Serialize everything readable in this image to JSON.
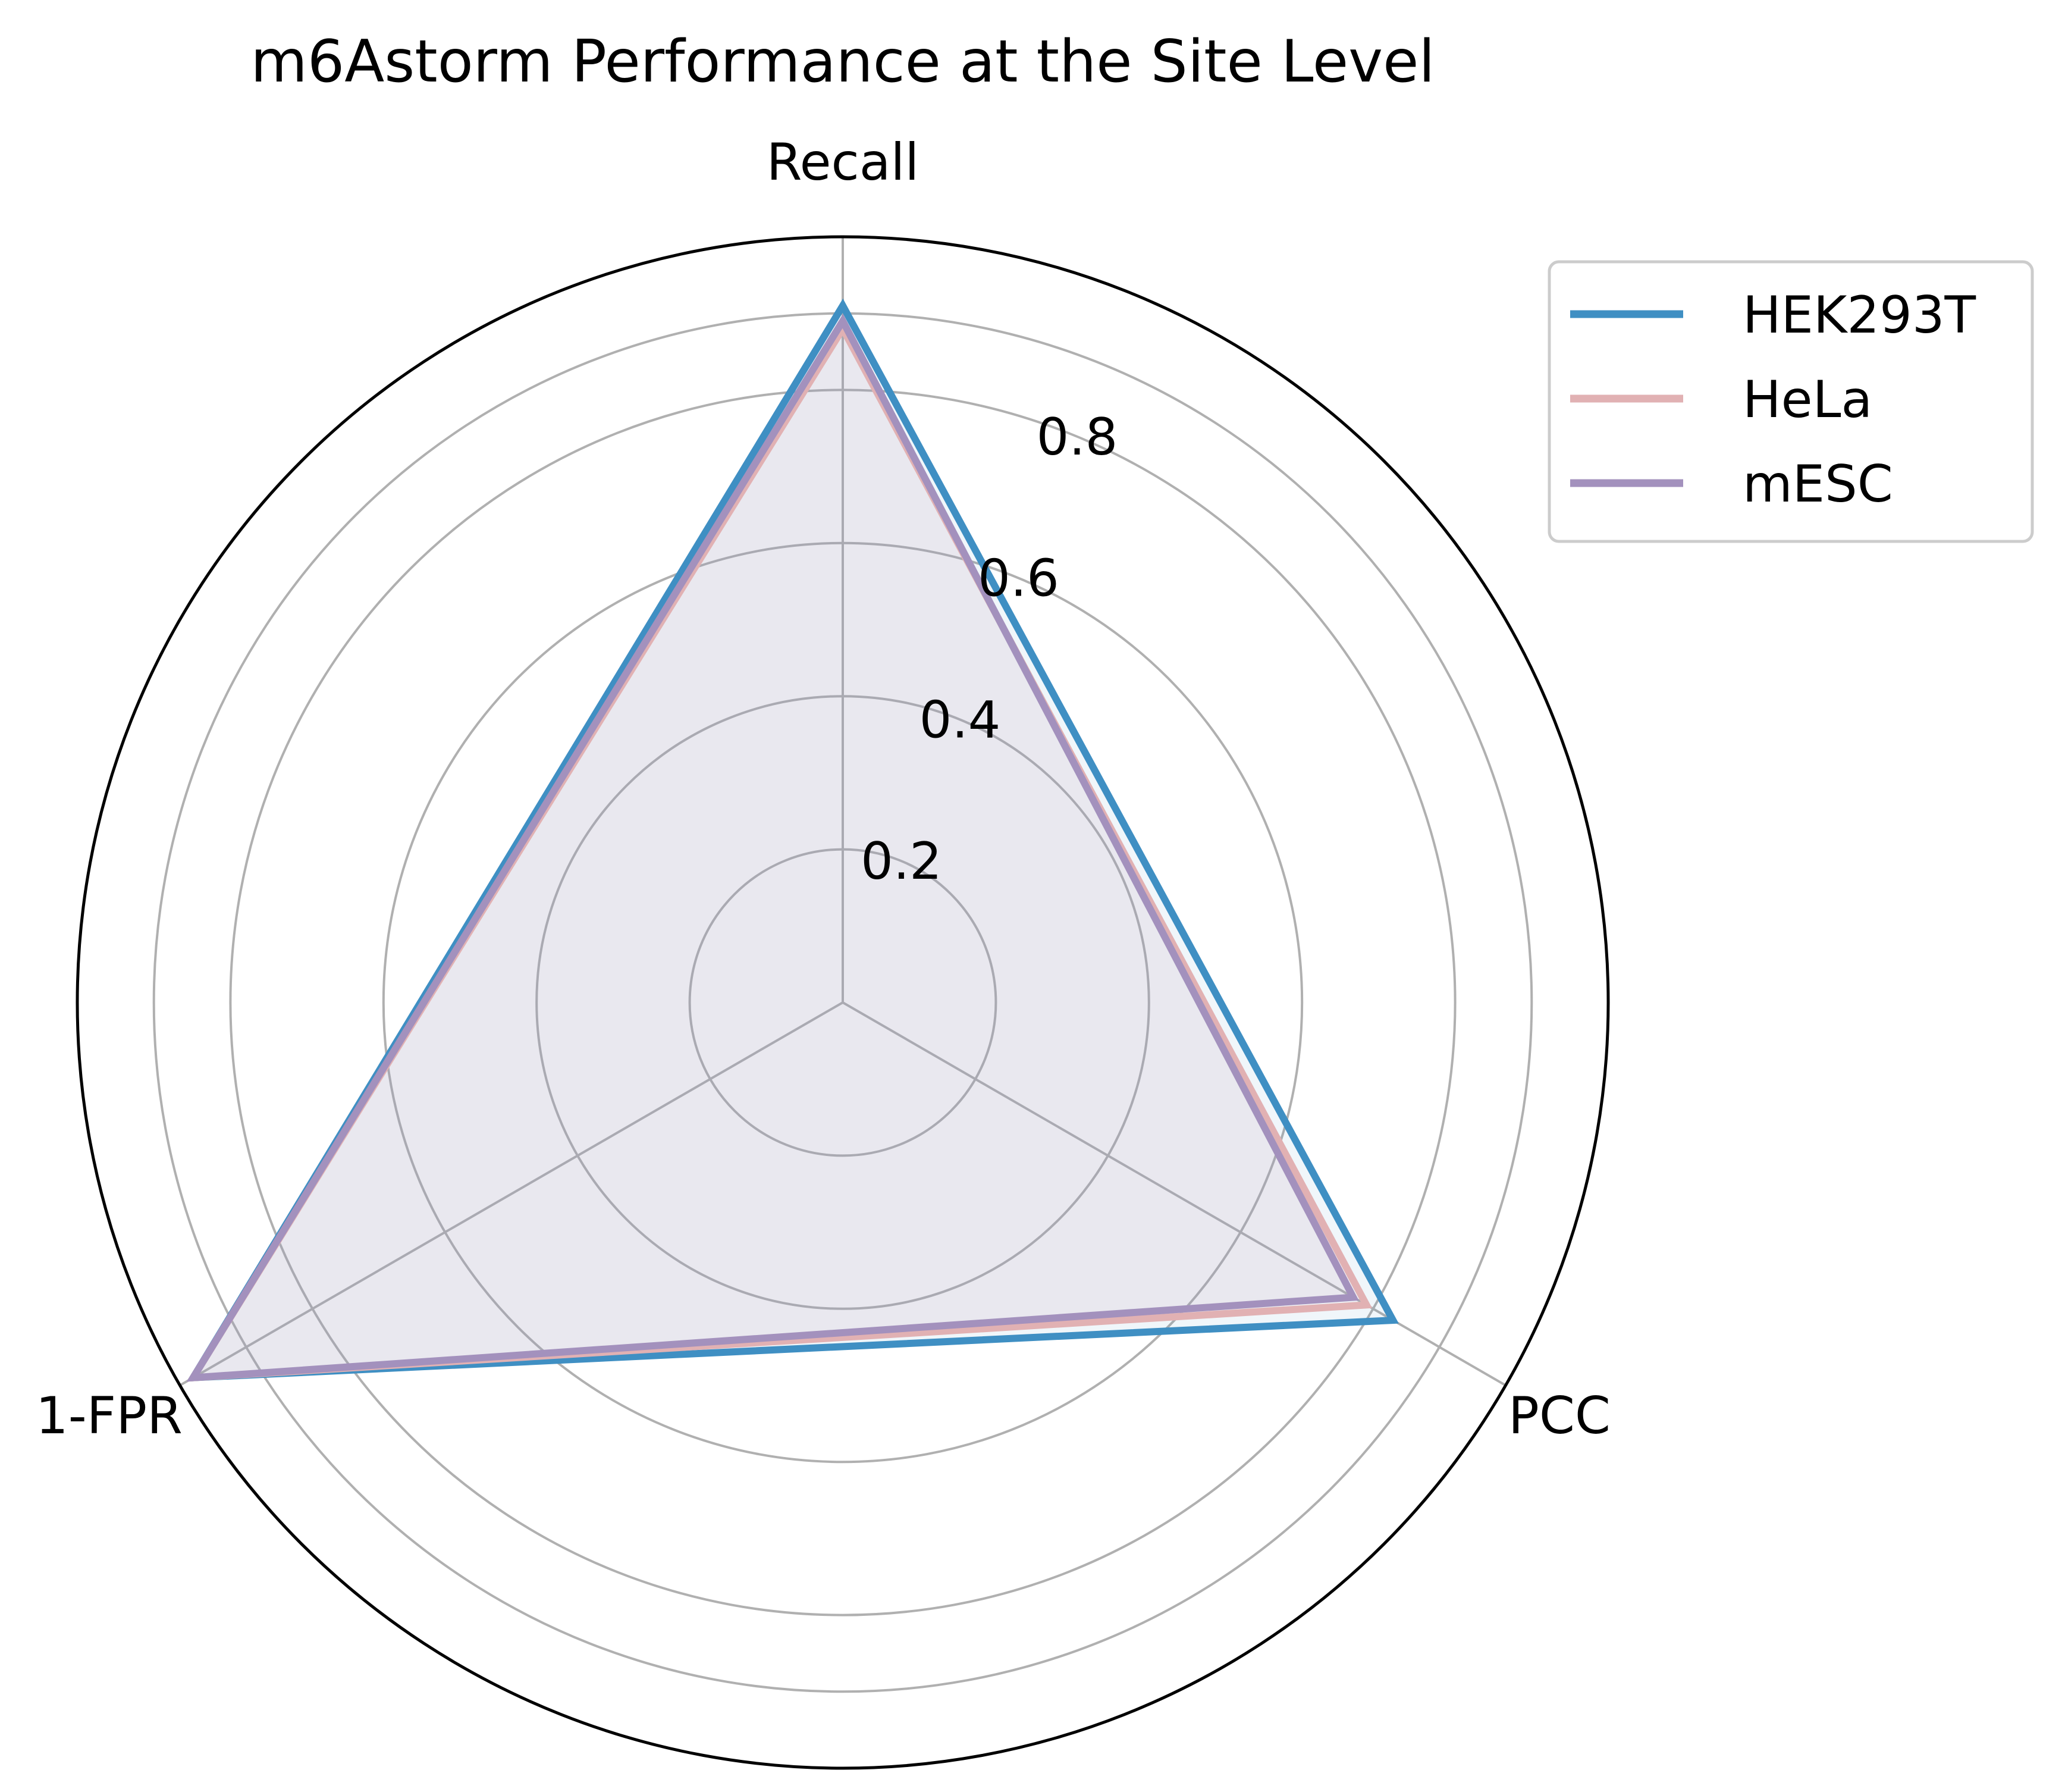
{
  "chart_data": {
    "type": "radar",
    "title": "m6Astorm Performance at the Site Level",
    "axes": [
      "Recall",
      "PCC",
      "1-FPR"
    ],
    "rlim": [
      0,
      1.0
    ],
    "rticks": [
      0.2,
      0.4,
      0.6,
      0.8
    ],
    "rtick_labels": [
      "0.2",
      "0.4",
      "0.6",
      "0.8"
    ],
    "grid": true,
    "legend_position": "top-right",
    "series": [
      {
        "name": "HEK293T",
        "values": [
          0.91,
          0.83,
          0.98
        ],
        "color": "#3f8fc3"
      },
      {
        "name": "HeLa",
        "values": [
          0.88,
          0.79,
          0.98
        ],
        "color": "#e1b1b3"
      },
      {
        "name": "mESC",
        "values": [
          0.89,
          0.77,
          0.98
        ],
        "color": "#a391bd"
      }
    ],
    "fill_color": "#efeef3"
  }
}
